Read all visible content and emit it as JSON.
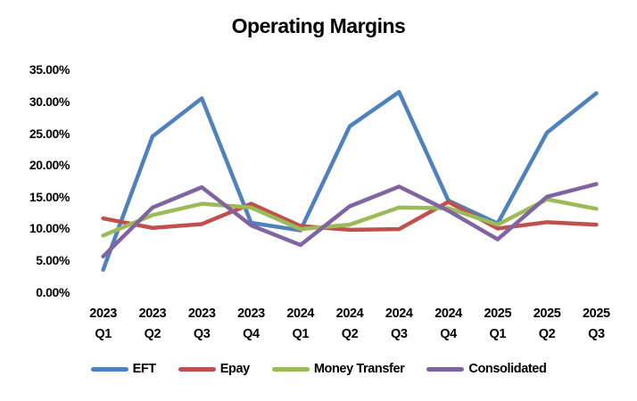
{
  "chart_data": {
    "type": "line",
    "title": "Operating Margins",
    "grid": false,
    "legend_position": "bottom",
    "y_axis": {
      "min": 0,
      "max": 35,
      "step": 5,
      "tick_labels": [
        "35.00%",
        "30.00%",
        "25.00%",
        "20.00%",
        "15.00%",
        "10.00%",
        "5.00%",
        "0.00%"
      ]
    },
    "categories": [
      [
        "2023",
        "Q1"
      ],
      [
        "2023",
        "Q2"
      ],
      [
        "2023",
        "Q3"
      ],
      [
        "2023",
        "Q4"
      ],
      [
        "2024",
        "Q1"
      ],
      [
        "2024",
        "Q2"
      ],
      [
        "2024",
        "Q3"
      ],
      [
        "2024",
        "Q4"
      ],
      [
        "2025",
        "Q1"
      ],
      [
        "2025",
        "Q2"
      ],
      [
        "2025",
        "Q3"
      ]
    ],
    "series": [
      {
        "name": "EFT",
        "color": "#4F81BD",
        "values": [
          3.5,
          24.5,
          30.5,
          10.9,
          9.7,
          26.1,
          31.5,
          14.4,
          10.8,
          25.1,
          31.3
        ]
      },
      {
        "name": "Epay",
        "color": "#C0504D",
        "values": [
          11.6,
          10.1,
          10.7,
          13.9,
          10.4,
          9.8,
          9.9,
          14.2,
          10.0,
          11.0,
          10.6
        ]
      },
      {
        "name": "Money Transfer",
        "color": "#9BBB59",
        "values": [
          8.9,
          12.1,
          13.9,
          13.3,
          9.9,
          10.6,
          13.3,
          13.2,
          10.6,
          14.6,
          13.1
        ]
      },
      {
        "name": "Consolidated",
        "color": "#8064A2",
        "values": [
          5.6,
          13.3,
          16.5,
          10.5,
          7.4,
          13.5,
          16.6,
          12.8,
          8.3,
          15.0,
          17.0
        ]
      }
    ]
  }
}
